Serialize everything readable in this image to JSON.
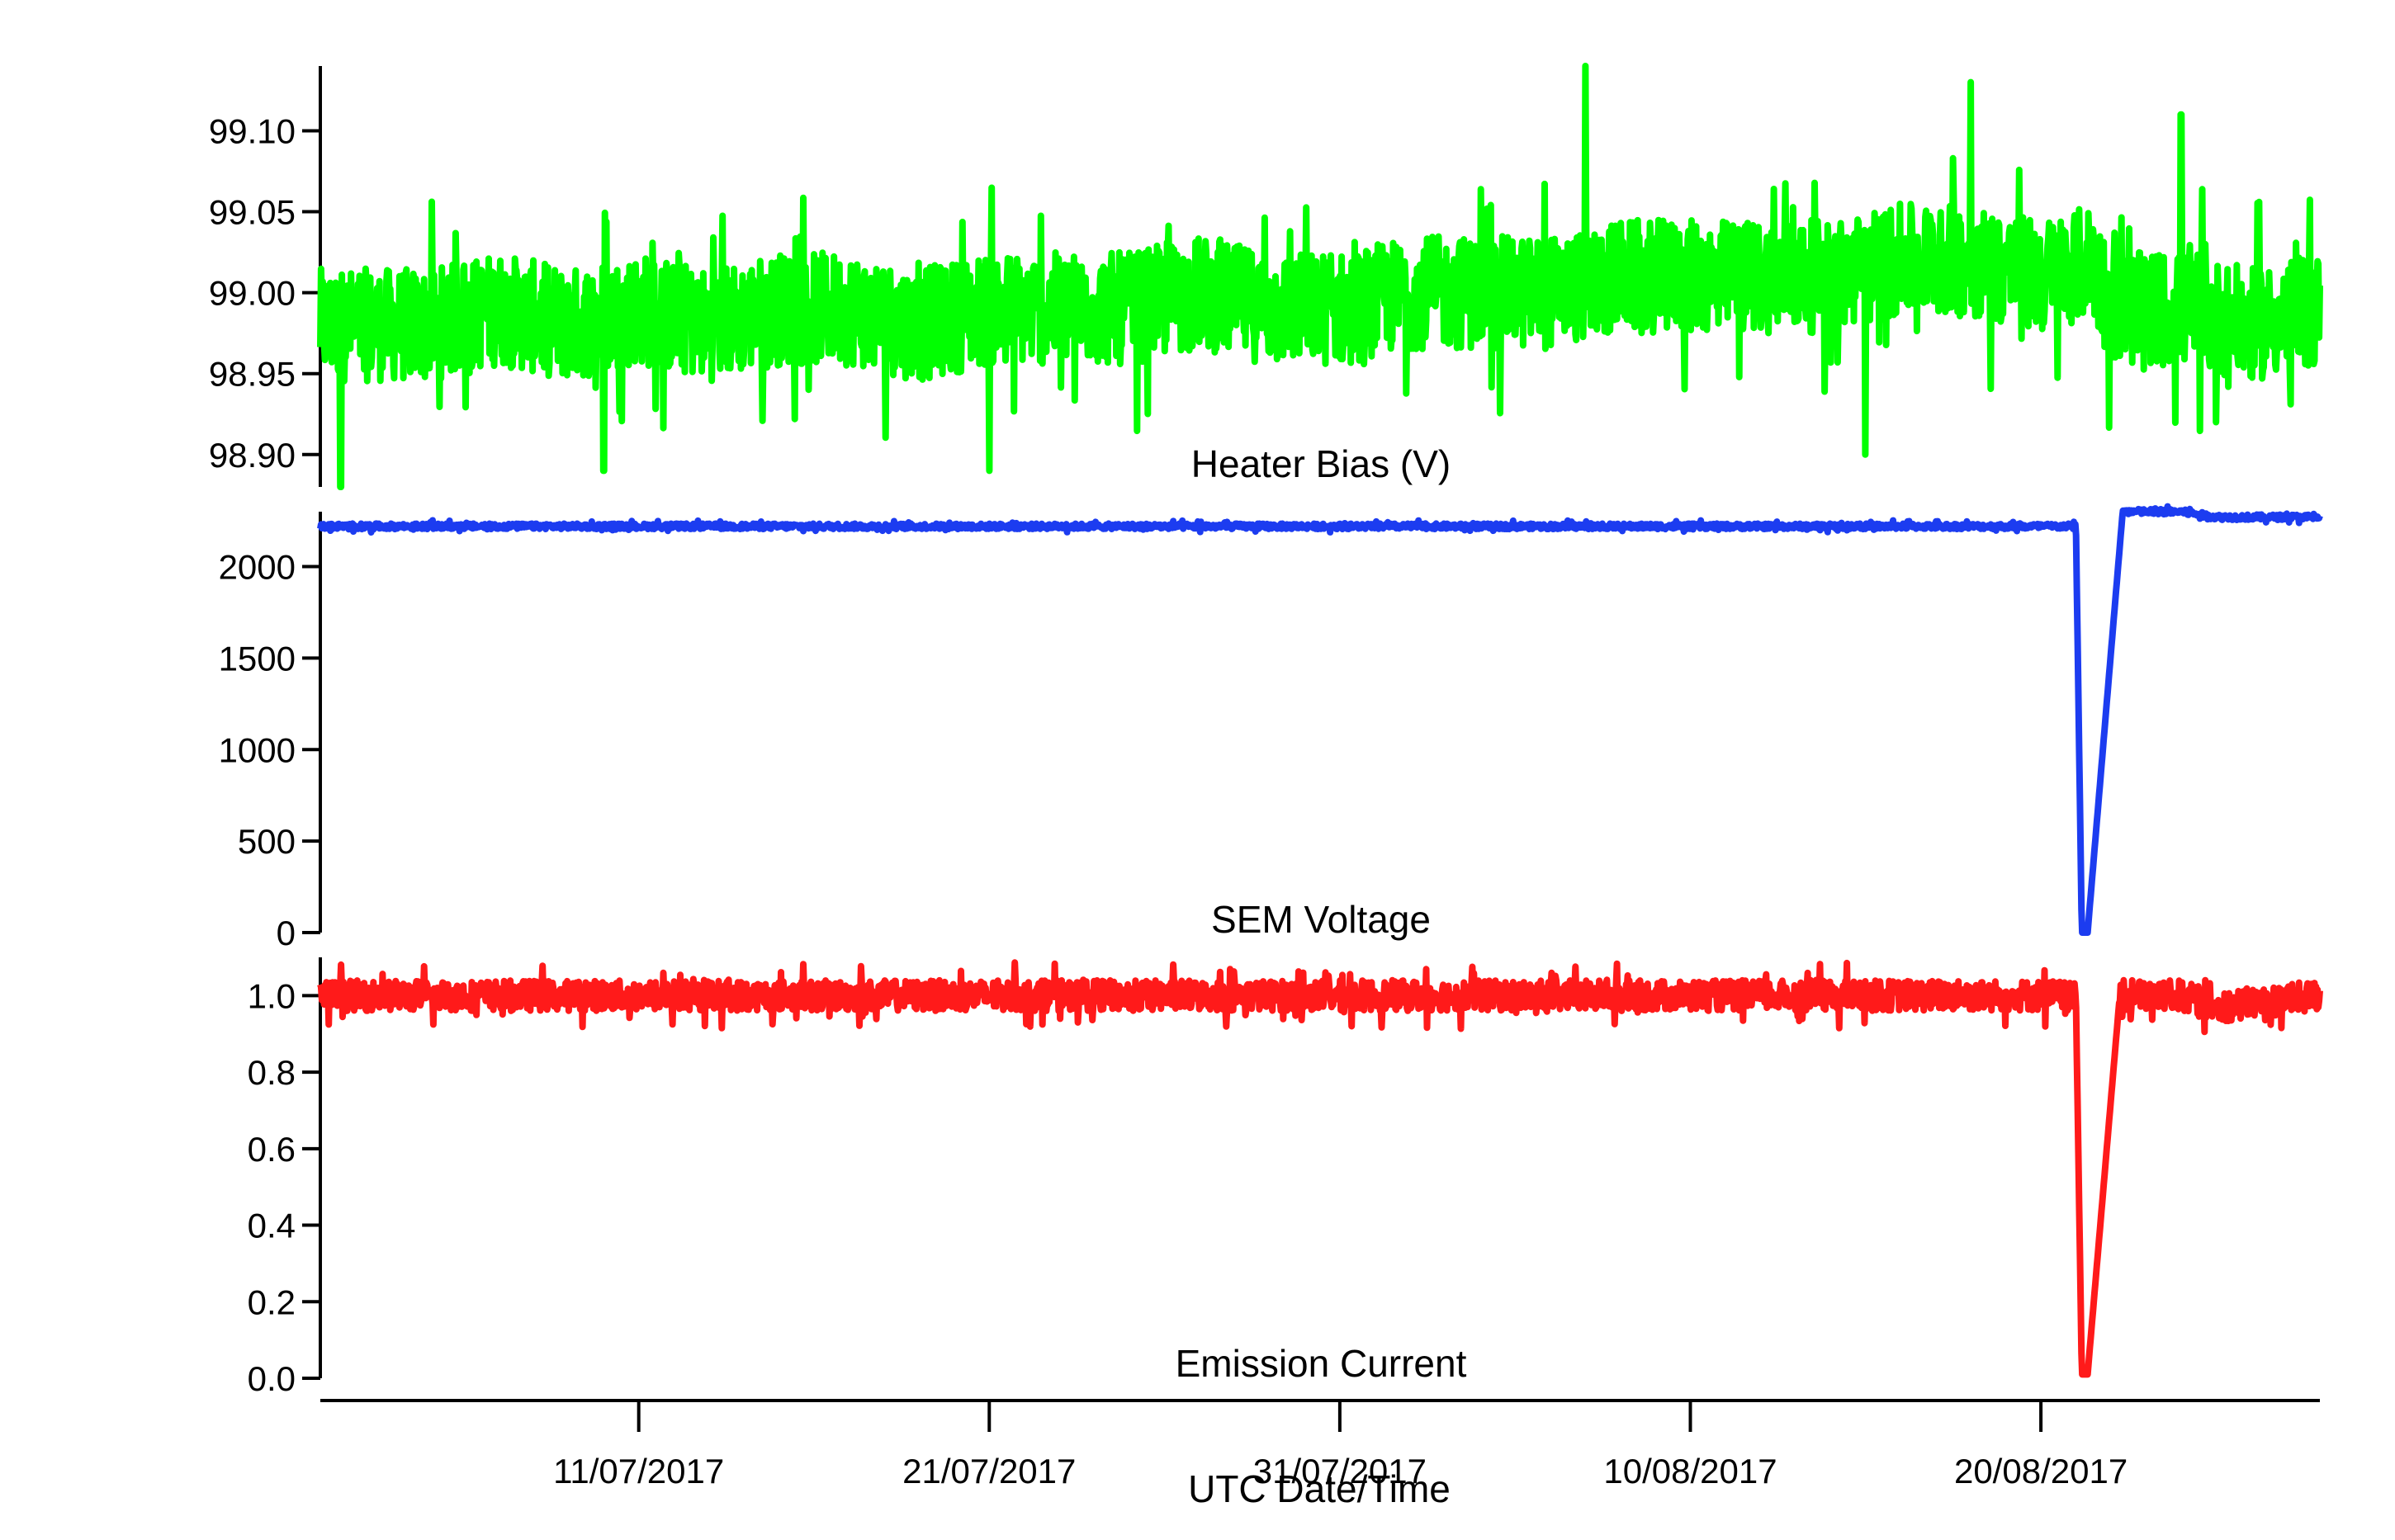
{
  "chart_data": {
    "type": "line",
    "xlabel": "UTC Date/Time",
    "x_axis": {
      "type": "date",
      "range": [
        "2017-07-01T22:00",
        "2017-08-27T23:00"
      ],
      "ticks": [
        "2017-07-11",
        "2017-07-21",
        "2017-07-31",
        "2017-08-10",
        "2017-08-20"
      ],
      "tick_labels": [
        "11/07/2017",
        "21/07/2017",
        "31/07/2017",
        "10/08/2017",
        "20/08/2017"
      ]
    },
    "grid": false,
    "panels": [
      {
        "title": "Heater Bias (V)",
        "ylim": [
          98.88,
          99.14
        ],
        "yticks": [
          98.9,
          98.95,
          99.0,
          99.05,
          99.1
        ],
        "ytick_labels": [
          "98.90",
          "98.95",
          "99.00",
          "99.05",
          "99.10"
        ],
        "series": [
          {
            "color": "#00ff00",
            "x": [
              "2017-07-01T22:00",
              "2017-07-03",
              "2017-07-05",
              "2017-07-07",
              "2017-07-09",
              "2017-07-11",
              "2017-07-13",
              "2017-07-15",
              "2017-07-17",
              "2017-07-19",
              "2017-07-21",
              "2017-07-23",
              "2017-07-25",
              "2017-07-27",
              "2017-07-29",
              "2017-07-31",
              "2017-08-02",
              "2017-08-04",
              "2017-08-06",
              "2017-08-08",
              "2017-08-10",
              "2017-08-12",
              "2017-08-14",
              "2017-08-16",
              "2017-08-18",
              "2017-08-20",
              "2017-08-21T12:00",
              "2017-08-22",
              "2017-08-24",
              "2017-08-26",
              "2017-08-27T23:00"
            ],
            "y": [
              98.98,
              98.98,
              98.98,
              98.99,
              98.98,
              98.99,
              98.98,
              98.99,
              98.99,
              98.98,
              98.99,
              98.99,
              98.99,
              99.0,
              98.99,
              98.99,
              99.0,
              99.0,
              99.0,
              99.01,
              99.01,
              99.01,
              99.01,
              99.02,
              99.02,
              99.01,
              99.02,
              98.99,
              98.99,
              98.98,
              98.99
            ],
            "spread": 0.035,
            "extremes": [
              {
                "x": "2017-07-02T12:00",
                "y": 98.88
              },
              {
                "x": "2017-07-10",
                "y": 98.89
              },
              {
                "x": "2017-07-21",
                "y": 98.89
              },
              {
                "x": "2017-08-07",
                "y": 99.14
              },
              {
                "x": "2017-08-15",
                "y": 98.9
              },
              {
                "x": "2017-08-18",
                "y": 99.13
              },
              {
                "x": "2017-08-24",
                "y": 99.11
              },
              {
                "x": "2017-08-25",
                "y": 98.92
              }
            ]
          }
        ]
      },
      {
        "title": "SEM Voltage",
        "ylim": [
          0,
          2300
        ],
        "yticks": [
          0,
          500,
          1000,
          1500,
          2000
        ],
        "ytick_labels": [
          "0",
          "500",
          "1000",
          "1500",
          "2000"
        ],
        "series": [
          {
            "color": "#1c3cf0",
            "x": [
              "2017-07-01T22:00",
              "2017-07-21",
              "2017-08-20T12:00",
              "2017-08-21",
              "2017-08-21T04:00",
              "2017-08-21T08:00",
              "2017-08-22T08:00",
              "2017-08-23",
              "2017-08-24",
              "2017-08-25",
              "2017-08-27T23:00"
            ],
            "y": [
              2220,
              2220,
              2220,
              2220,
              0,
              0,
              2300,
              2300,
              2300,
              2270,
              2270
            ],
            "spread": 15
          }
        ]
      },
      {
        "title": "Emission Current",
        "ylim": [
          0,
          1.1
        ],
        "yticks": [
          0.0,
          0.2,
          0.4,
          0.6,
          0.8,
          1.0
        ],
        "ytick_labels": [
          "0.0",
          "0.2",
          "0.4",
          "0.6",
          "0.8",
          "1.0"
        ],
        "series": [
          {
            "color": "#ff1a1a",
            "x": [
              "2017-07-01T22:00",
              "2017-07-21",
              "2017-08-20T12:00",
              "2017-08-21",
              "2017-08-21T04:00",
              "2017-08-21T08:00",
              "2017-08-22T06:00",
              "2017-08-24",
              "2017-08-25",
              "2017-08-27T23:00"
            ],
            "y": [
              1.0,
              1.0,
              1.0,
              0.99,
              0.01,
              0.01,
              1.0,
              1.0,
              0.97,
              1.0
            ],
            "spread": 0.04
          }
        ]
      }
    ]
  }
}
